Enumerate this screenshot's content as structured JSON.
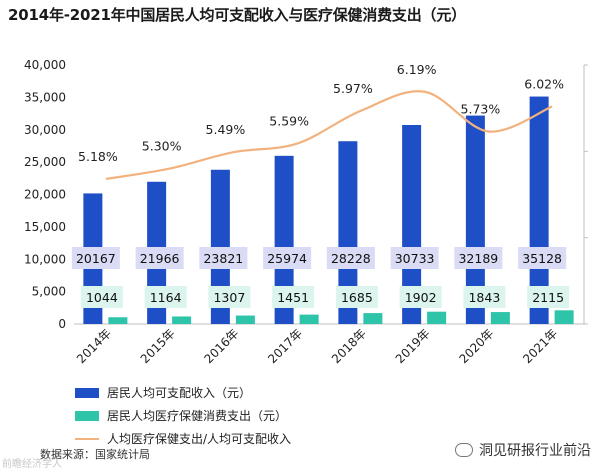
{
  "chart_data": {
    "type": "bar",
    "title": "2014年-2021年中国居民人均可支配收入与医疗保健消费支出（元）",
    "categories": [
      "2014年",
      "2015年",
      "2016年",
      "2017年",
      "2018年",
      "2019年",
      "2020年",
      "2021年"
    ],
    "series": [
      {
        "name": "居民人均可支配收入（元）",
        "type": "bar",
        "axis": "left",
        "color": "#1f4fc6",
        "values": [
          20167,
          21966,
          23821,
          25974,
          28228,
          30733,
          32189,
          35128
        ]
      },
      {
        "name": "居民人均医疗保健消费支出（元）",
        "type": "bar",
        "axis": "left",
        "color": "#2ec4a9",
        "values": [
          1044,
          1164,
          1307,
          1451,
          1685,
          1902,
          1843,
          2115
        ]
      },
      {
        "name": "人均医疗保健支出/人均可支配收入",
        "type": "line",
        "axis": "right",
        "color": "#f2b27e",
        "values": [
          5.18,
          5.3,
          5.49,
          5.59,
          5.97,
          6.19,
          5.73,
          6.02
        ],
        "labels": [
          "5.18%",
          "5.30%",
          "5.49%",
          "5.59%",
          "5.97%",
          "6.19%",
          "5.73%",
          "6.02%"
        ]
      }
    ],
    "y_axis": {
      "range": [
        0,
        40000
      ],
      "ticks": [
        0,
        5000,
        10000,
        15000,
        20000,
        25000,
        30000,
        35000,
        40000
      ],
      "tick_labels": [
        "0",
        "5,000",
        "10,000",
        "15,000",
        "20,000",
        "25,000",
        "30,000",
        "35,000",
        "40,000"
      ]
    },
    "y2_axis": {
      "range": [
        3.5,
        6.5
      ],
      "tick_labels_shown": false
    },
    "grid": false,
    "legend_position": "bottom"
  },
  "source": "数据来源：国家统计局",
  "watermark": "前瞻经济学人",
  "brand": "洞见研报行业前沿"
}
